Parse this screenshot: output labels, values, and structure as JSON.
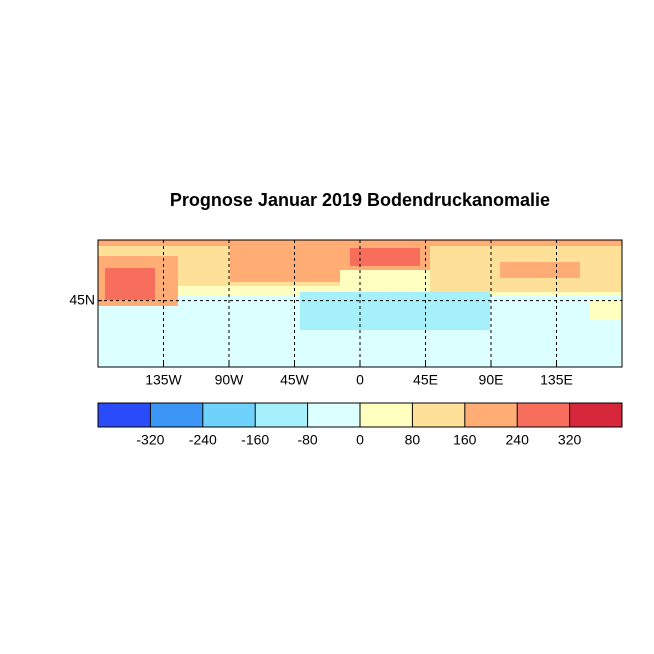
{
  "title": "Prognose Januar 2019 Bodendruckanomalie",
  "map": {
    "lonlim": [
      -180,
      180
    ],
    "latlim": [
      -1,
      87
    ],
    "lon_ticks": [
      {
        "value": -135,
        "label": "135W"
      },
      {
        "value": -90,
        "label": "90W"
      },
      {
        "value": -45,
        "label": "45W"
      },
      0,
      {
        "value": 45,
        "label": "45E"
      },
      {
        "value": 90,
        "label": "90E"
      },
      {
        "value": 135,
        "label": "135E"
      }
    ],
    "lat_ticks": [
      {
        "value": 45,
        "label": "45N"
      }
    ],
    "grid": true
  },
  "colorbar": {
    "lim": [
      -400,
      400
    ],
    "ticks": [
      -320,
      -240,
      -160,
      -80,
      0,
      80,
      160,
      240,
      320
    ],
    "colors": [
      "#2a4bfa",
      "#3c96f5",
      "#6fd2fb",
      "#a6f0fb",
      "#dcffff",
      "#ffffc0",
      "#ffe099",
      "#ffad74",
      "#f76e5d",
      "#d7283b"
    ]
  }
}
